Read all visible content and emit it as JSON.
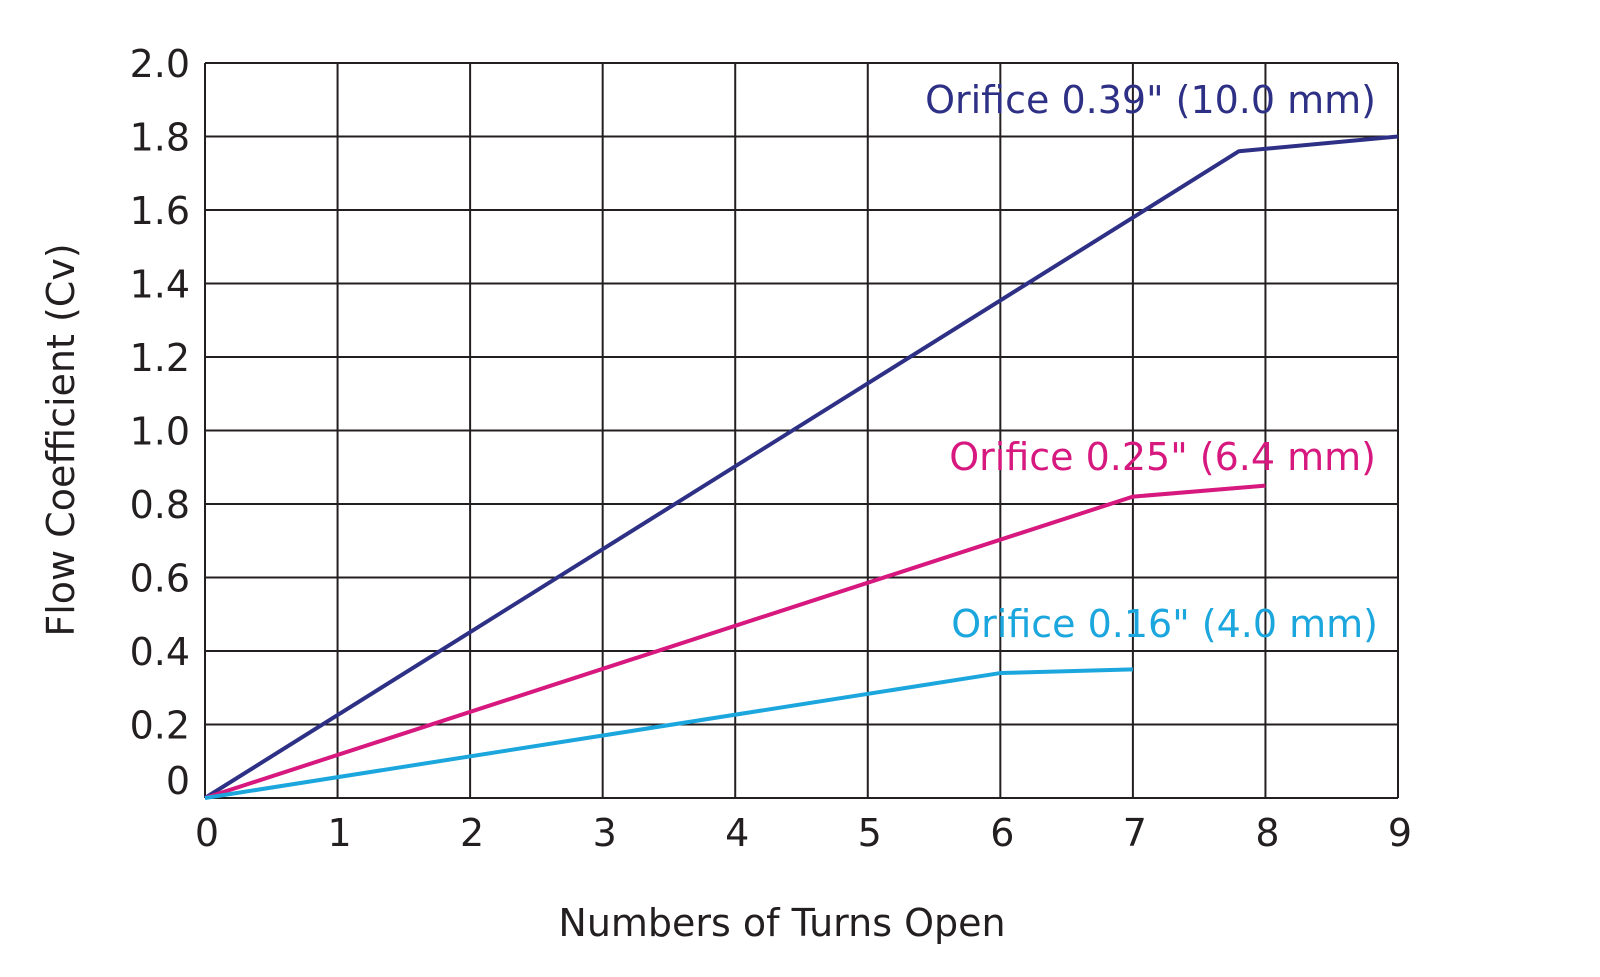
{
  "chart_data": {
    "type": "line",
    "title": "",
    "xlabel": "Numbers of Turns Open",
    "ylabel": "Flow Coefficient (Cv)",
    "xlim": [
      0,
      9
    ],
    "ylim": [
      0,
      2.0
    ],
    "grid": true,
    "x_ticks": [
      "0",
      "1",
      "2",
      "3",
      "4",
      "5",
      "6",
      "7",
      "8",
      "9"
    ],
    "y_ticks": [
      "0",
      "0.2",
      "0.4",
      "0.6",
      "0.8",
      "1.0",
      "1.2",
      "1.4",
      "1.6",
      "1.8",
      "2.0"
    ],
    "legend_position": "inline-labels",
    "series": [
      {
        "name": "Orifice 0.39\" (10.0 mm)",
        "color": "#2e3085",
        "x": [
          0,
          7.8,
          9
        ],
        "y": [
          0,
          1.76,
          1.8
        ]
      },
      {
        "name": "Orifice 0.25\" (6.4 mm)",
        "color": "#d6187f",
        "x": [
          0,
          7,
          8
        ],
        "y": [
          0,
          0.82,
          0.85
        ]
      },
      {
        "name": "Orifice 0.16\" (4.0 mm)",
        "color": "#1ba6dd",
        "x": [
          0,
          6,
          7
        ],
        "y": [
          0,
          0.34,
          0.35
        ]
      }
    ]
  }
}
